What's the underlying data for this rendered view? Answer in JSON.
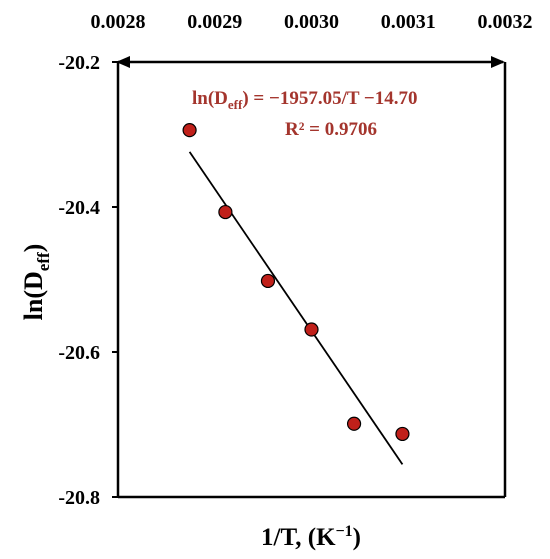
{
  "chart_data": {
    "type": "scatter",
    "xlabel": {
      "prefix": "1/T, (K",
      "superscript": "−1",
      "suffix": ")"
    },
    "ylabel": {
      "prefix": "ln(D",
      "subscript": "eff",
      "suffix": ")"
    },
    "xlim": [
      0.0028,
      0.0032
    ],
    "ylim": [
      -20.8,
      -20.2
    ],
    "xticks": [
      "0.0028",
      "0.0029",
      "0.0030",
      "0.0031",
      "0.0032"
    ],
    "yticks": [
      "-20.2",
      "-20.4",
      "-20.6",
      "-20.8"
    ],
    "x_axis_position": "top",
    "grid": false,
    "legend": "none",
    "series": [
      {
        "marker_color": "#c0201a",
        "points": [
          {
            "x": 0.002874,
            "y": -20.294
          },
          {
            "x": 0.002911,
            "y": -20.407
          },
          {
            "x": 0.002955,
            "y": -20.502
          },
          {
            "x": 0.003,
            "y": -20.569
          },
          {
            "x": 0.003044,
            "y": -20.699
          },
          {
            "x": 0.003094,
            "y": -20.713
          }
        ]
      }
    ],
    "trendline": {
      "x_start": 0.002874,
      "x_end": 0.003094,
      "y_start": -20.324,
      "y_end": -20.755,
      "color": "#000000"
    },
    "annotations": {
      "equation": {
        "prefix": "ln(D",
        "subscript": "eff",
        "suffix": ") = −1957.05/T −14.70"
      },
      "r_squared": "R² = 0.9706",
      "color": "#a4352d"
    }
  }
}
